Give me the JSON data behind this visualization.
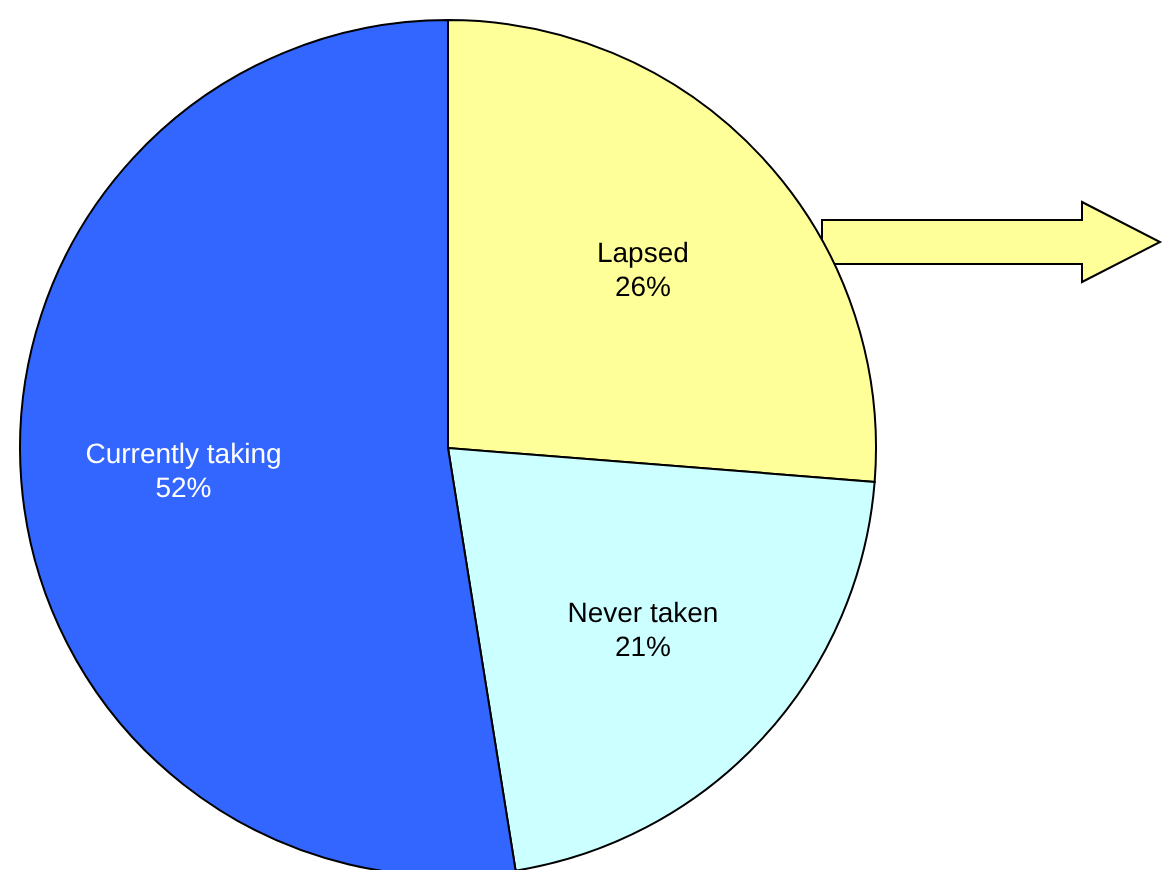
{
  "chart_data": {
    "type": "pie",
    "categories": [
      "Lapsed",
      "Never taken",
      "Currently taking"
    ],
    "values": [
      26,
      21,
      52
    ],
    "colors": [
      "#ffff99",
      "#ccffff",
      "#3366ff"
    ],
    "value_labels": [
      "26%",
      "21%",
      "52%"
    ]
  }
}
